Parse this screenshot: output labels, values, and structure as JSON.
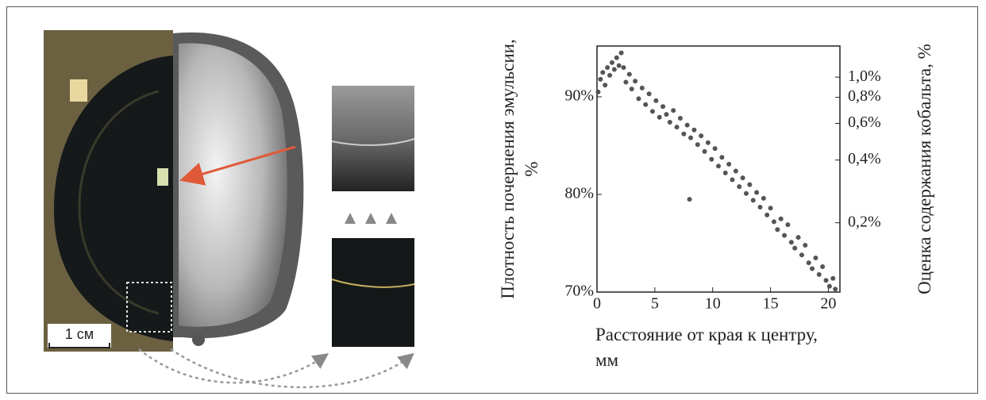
{
  "image_label": "1 см",
  "chart_data": {
    "type": "scatter",
    "x_label": "Расстояние от края к центру, мм",
    "y_label": "Плотность почернения эмульсии, %",
    "y2_label": "Оценка содержания кобальта, %",
    "color": "#555555",
    "grid": false,
    "xlim": [
      0,
      21
    ],
    "xticks": [
      0,
      5,
      10,
      15,
      20
    ],
    "ylim": [
      70,
      95.2
    ],
    "yticks": [
      {
        "value": 70,
        "label": "70%"
      },
      {
        "value": 80,
        "label": "80%"
      },
      {
        "value": 90,
        "label": "90%"
      }
    ],
    "y2_log": true,
    "y2lim": [
      0.093,
      1.41
    ],
    "y2ticks": [
      {
        "value": 1.0,
        "label": "1,0%"
      },
      {
        "value": 0.8,
        "label": "0,8%"
      },
      {
        "value": 0.6,
        "label": "0,6%"
      },
      {
        "value": 0.4,
        "label": "0,4%"
      },
      {
        "value": 0.2,
        "label": "0,2%"
      }
    ],
    "x": [
      0.1,
      0.3,
      0.5,
      0.7,
      0.9,
      1.1,
      1.3,
      1.5,
      1.7,
      1.9,
      2.1,
      2.3,
      2.5,
      2.8,
      3.0,
      3.3,
      3.6,
      3.9,
      4.2,
      4.5,
      4.8,
      5.1,
      5.4,
      5.7,
      6.0,
      6.3,
      6.6,
      6.9,
      7.2,
      7.5,
      7.8,
      8.0,
      8.1,
      8.4,
      8.7,
      9.0,
      9.3,
      9.6,
      9.9,
      10.2,
      10.5,
      10.8,
      11.1,
      11.4,
      11.7,
      12.0,
      12.3,
      12.6,
      12.9,
      13.2,
      13.5,
      13.8,
      14.1,
      14.4,
      14.7,
      15.0,
      15.3,
      15.6,
      15.9,
      16.2,
      16.5,
      16.8,
      17.1,
      17.4,
      17.7,
      18.0,
      18.3,
      18.6,
      18.9,
      19.2,
      19.5,
      19.8,
      20.1,
      20.4,
      20.6
    ],
    "values": [
      90.5,
      91.8,
      92.5,
      91.2,
      93.0,
      92.2,
      93.5,
      92.8,
      94.0,
      93.2,
      94.5,
      93.0,
      91.5,
      92.3,
      90.8,
      91.6,
      89.8,
      90.9,
      89.2,
      90.3,
      88.5,
      89.6,
      87.9,
      89.0,
      88.2,
      87.4,
      88.6,
      86.9,
      87.8,
      86.2,
      87.1,
      79.5,
      85.8,
      86.6,
      85.1,
      86.0,
      84.4,
      85.3,
      83.6,
      84.7,
      82.9,
      83.8,
      82.2,
      83.1,
      81.5,
      82.4,
      80.8,
      81.7,
      80.1,
      81.0,
      79.4,
      80.2,
      78.7,
      79.6,
      77.9,
      78.6,
      77.2,
      76.4,
      77.5,
      75.8,
      76.9,
      75.1,
      74.5,
      75.6,
      73.8,
      74.8,
      73.0,
      72.4,
      73.5,
      71.8,
      72.6,
      71.2,
      70.6,
      71.4,
      70.3
    ]
  }
}
